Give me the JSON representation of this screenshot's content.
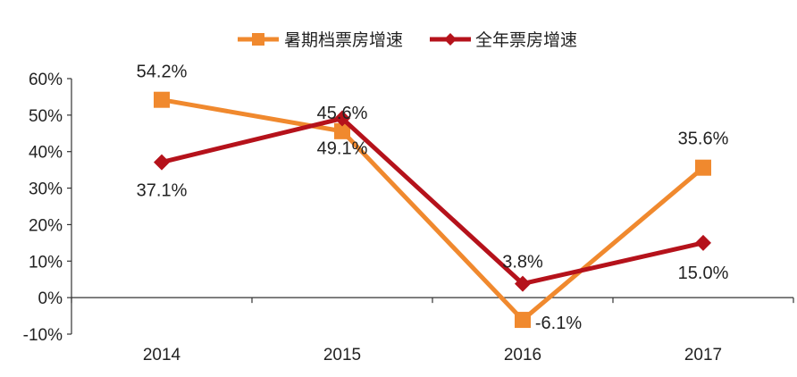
{
  "chart_data": {
    "type": "line",
    "categories": [
      "2014",
      "2015",
      "2016",
      "2017"
    ],
    "ylim": [
      -10,
      60
    ],
    "yticks": [
      -10,
      0,
      10,
      20,
      30,
      40,
      50,
      60
    ],
    "ytick_labels": [
      "-10%",
      "0%",
      "10%",
      "20%",
      "30%",
      "40%",
      "50%",
      "60%"
    ],
    "legend_position": "top-center",
    "grid": false,
    "series": [
      {
        "name": "暑期档票房增速",
        "values": [
          54.2,
          45.6,
          -6.1,
          35.6
        ],
        "labels": [
          "54.2%",
          "45.6%",
          "-6.1%",
          "35.6%"
        ],
        "color": "#F0892E",
        "marker": "square"
      },
      {
        "name": "全年票房增速",
        "values": [
          37.1,
          49.1,
          3.8,
          15.0
        ],
        "labels": [
          "37.1%",
          "49.1%",
          "3.8%",
          "15.0%"
        ],
        "color": "#B5121B",
        "marker": "diamond"
      }
    ]
  }
}
